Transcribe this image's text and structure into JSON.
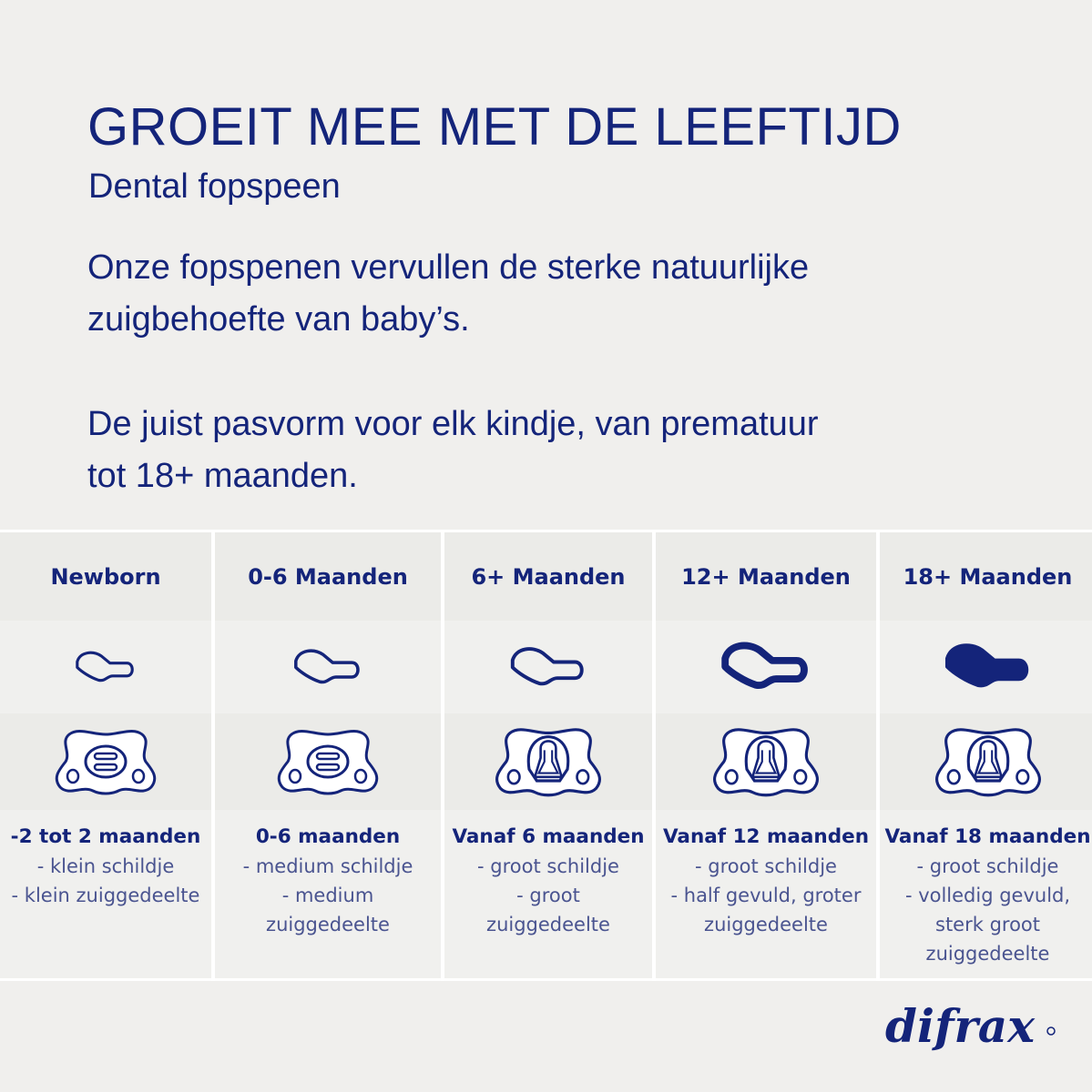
{
  "header": {
    "title": "GROEIT MEE MET DE LEEFTIJD",
    "subtitle": "Dental fopspeen",
    "paragraph1": [
      "Onze fopspenen vervullen de sterke natuurlijke",
      "zuigbehoefte van baby’s."
    ],
    "paragraph2": [
      "De juist pasvorm voor elk kindje, van prematuur",
      "tot 18+ maanden."
    ]
  },
  "columns": [
    {
      "label": "Newborn",
      "age": "-2 tot 2 maanden",
      "lines": [
        "- klein schildje",
        "- klein zuiggedeelte"
      ],
      "side_icon": "nipple-profile-small-outline",
      "front_icon": "shield-small-icon"
    },
    {
      "label": "0-6 Maanden",
      "age": "0-6 maanden",
      "lines": [
        "- medium schildje",
        "- medium",
        "zuiggedeelte"
      ],
      "side_icon": "nipple-profile-medium-outline",
      "front_icon": "shield-medium-icon"
    },
    {
      "label": "6+ Maanden",
      "age": "Vanaf 6 maanden",
      "lines": [
        "- groot schildje",
        "- groot",
        "zuiggedeelte"
      ],
      "side_icon": "nipple-profile-large-outline",
      "front_icon": "shield-large-icon"
    },
    {
      "label": "12+ Maanden",
      "age": "Vanaf 12 maanden",
      "lines": [
        "- groot schildje",
        "- half gevuld, groter",
        "zuiggedeelte"
      ],
      "side_icon": "nipple-profile-half-filled",
      "front_icon": "shield-large-icon"
    },
    {
      "label": "18+ Maanden",
      "age": "Vanaf 18 maanden",
      "lines": [
        "- groot schildje",
        "- volledig gevuld,",
        "sterk groot",
        "zuiggedeelte"
      ],
      "side_icon": "nipple-profile-filled",
      "front_icon": "shield-large-icon"
    }
  ],
  "logo": {
    "text": "difrax"
  },
  "colors": {
    "navy": "#14247a",
    "background": "#f0efed"
  }
}
